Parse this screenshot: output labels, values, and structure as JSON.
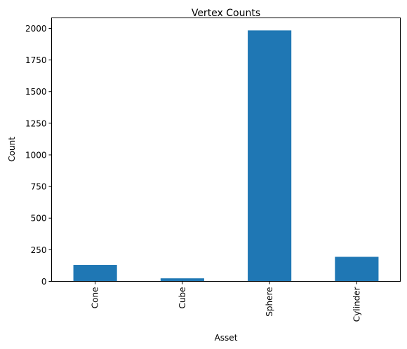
{
  "chart_data": {
    "type": "bar",
    "title": "Vertex Counts",
    "xlabel": "Asset",
    "ylabel": "Count",
    "categories": [
      "Cone",
      "Cube",
      "Sphere",
      "Cylinder"
    ],
    "values": [
      130,
      24,
      1984,
      194
    ],
    "ylim": [
      0,
      2083
    ],
    "yticks": [
      0,
      250,
      500,
      750,
      1000,
      1250,
      1500,
      1750,
      2000
    ],
    "bar_color": "#1f77b4",
    "grid": false,
    "legend": "none"
  }
}
